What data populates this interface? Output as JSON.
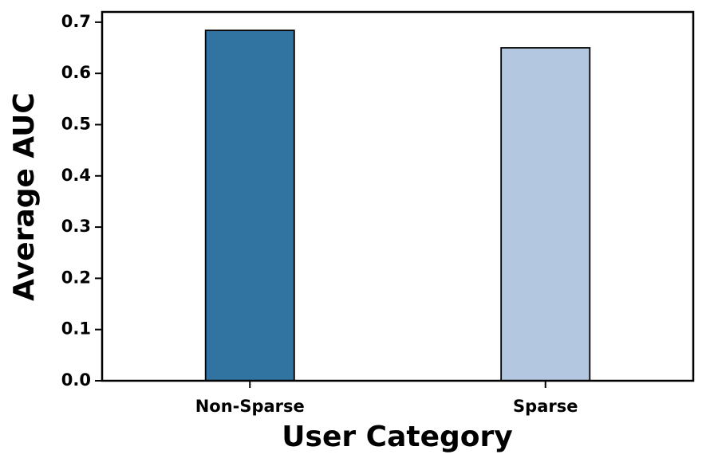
{
  "chart_data": {
    "type": "bar",
    "x_label": "User Category",
    "y_label": "Average AUC",
    "categories": [
      "Non-Sparse",
      "Sparse"
    ],
    "values": [
      0.684,
      0.65
    ],
    "colors": [
      "#3274a1",
      "#b3c7e0"
    ],
    "ylim": [
      0,
      0.72
    ],
    "yticks": [
      {
        "value": 0,
        "label": "0.0"
      },
      0.1,
      0.2,
      0.3,
      0.4,
      0.5,
      0.6,
      0.7
    ],
    "grid": false
  }
}
